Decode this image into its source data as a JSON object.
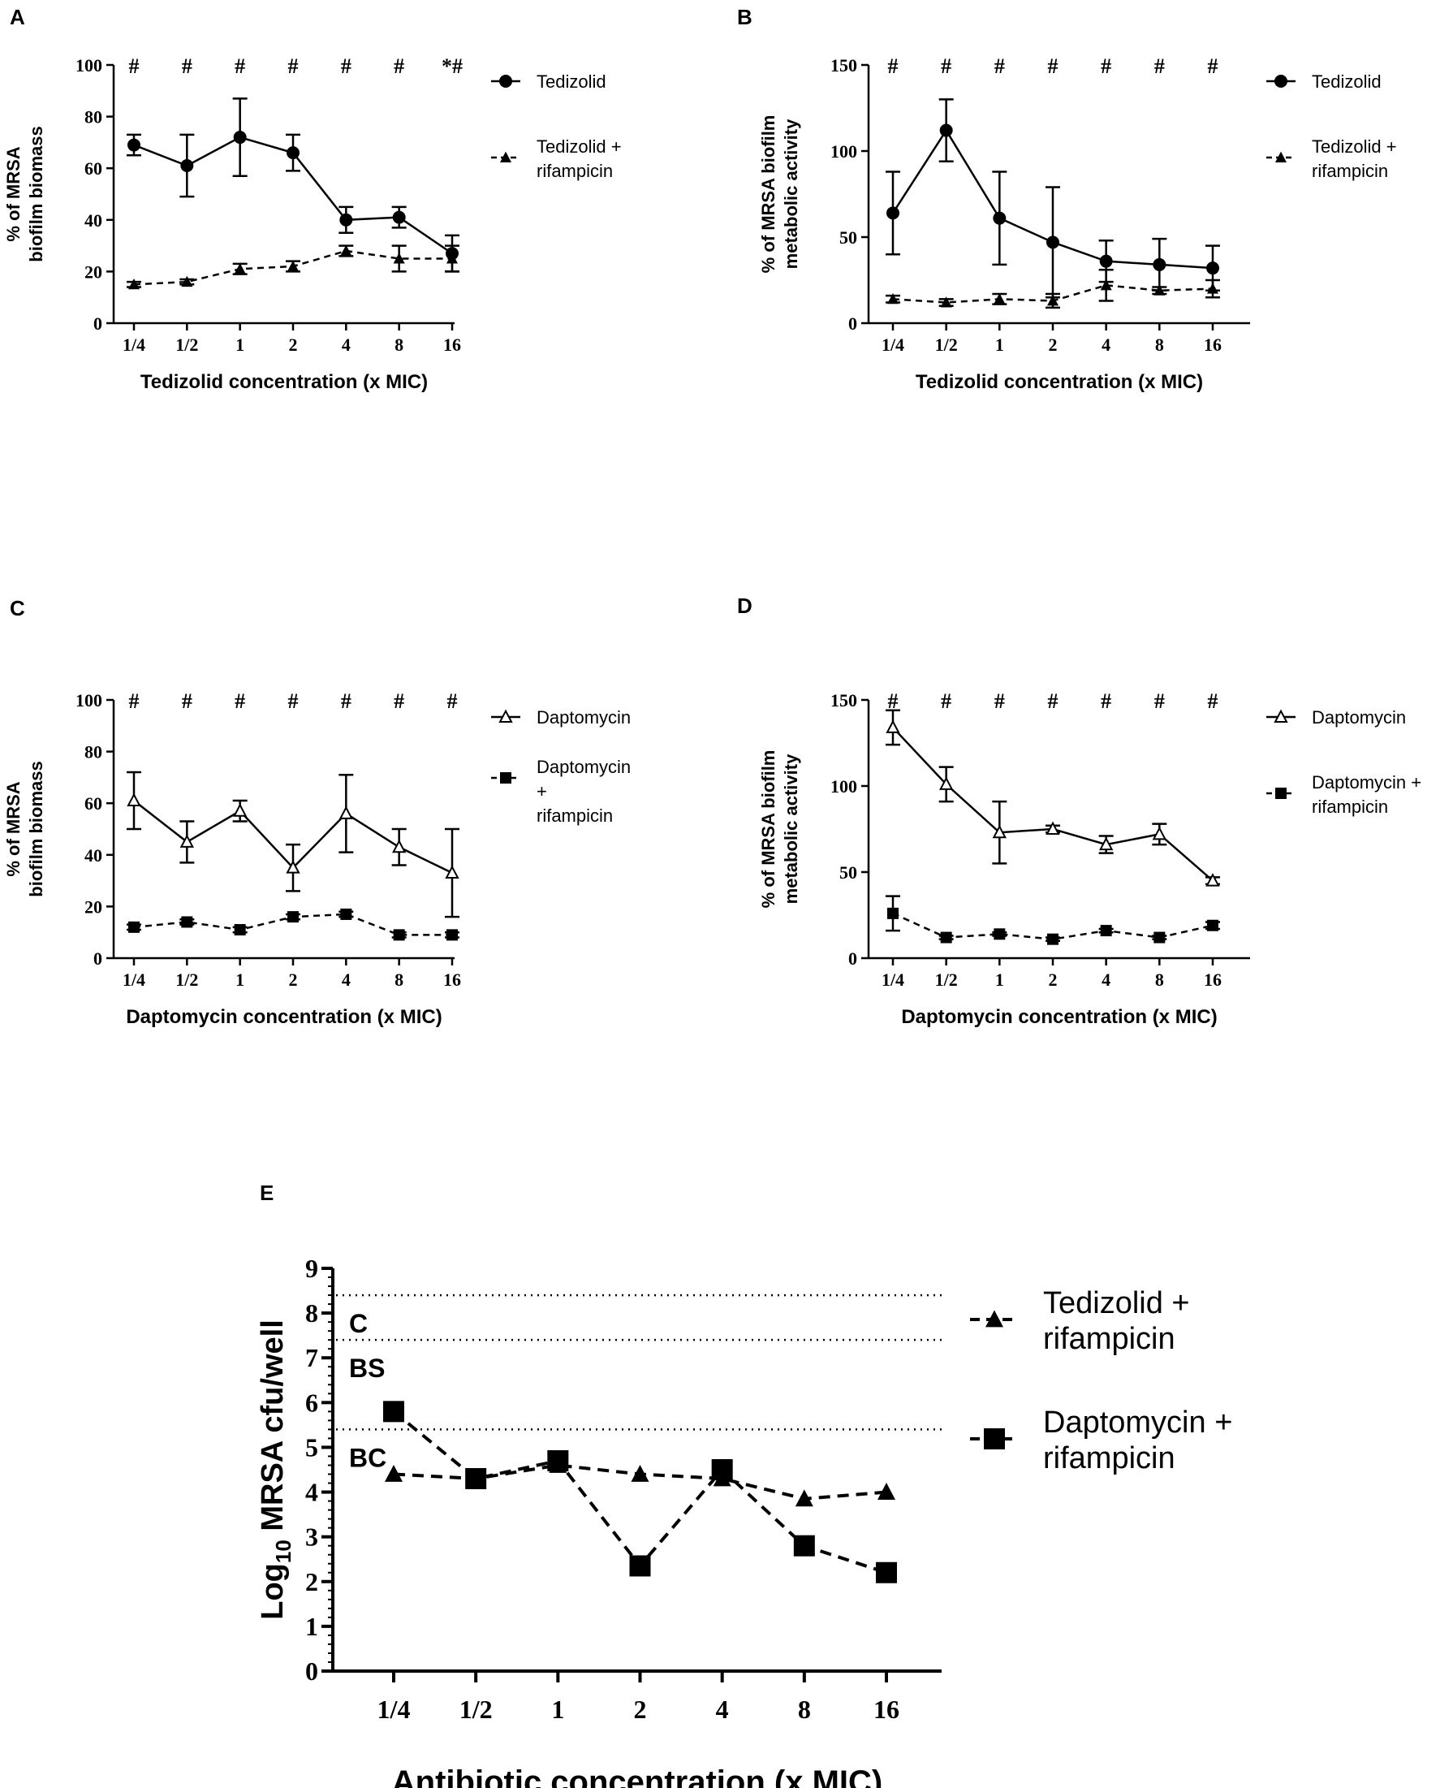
{
  "chart_data": [
    {
      "panel": "A",
      "type": "line",
      "categories": [
        "1/4",
        "1/2",
        "1",
        "2",
        "4",
        "8",
        "16"
      ],
      "xlabel": "Tedizolid concentration (x MIC)",
      "ylabel_lines": [
        "% of MRSA",
        "biofilm biomass"
      ],
      "ylim": [
        0,
        100
      ],
      "yticks": [
        0,
        20,
        40,
        60,
        80,
        100
      ],
      "markers_text": [
        "#",
        "#",
        "#",
        "#",
        "#",
        "#",
        "*#"
      ],
      "series": [
        {
          "name": "Tedizolid",
          "legend_lines": [
            "Tedizolid"
          ],
          "marker": "circle",
          "dash": false,
          "values": [
            69,
            61,
            72,
            66,
            40,
            41,
            27
          ],
          "err": [
            4,
            12,
            15,
            7,
            5,
            4,
            7
          ]
        },
        {
          "name": "Tedizolid + rifampicin",
          "legend_lines": [
            "Tedizolid +",
            "rifampicin"
          ],
          "marker": "triangle",
          "dash": true,
          "values": [
            15,
            16,
            21,
            22,
            28,
            25,
            25
          ],
          "err": [
            1,
            1,
            2,
            2,
            2,
            5,
            5
          ]
        }
      ]
    },
    {
      "panel": "B",
      "type": "line",
      "categories": [
        "1/4",
        "1/2",
        "1",
        "2",
        "4",
        "8",
        "16"
      ],
      "xlabel": "Tedizolid concentration (x MIC)",
      "ylabel_lines": [
        "% of MRSA biofilm",
        "metabolic activity"
      ],
      "ylim": [
        0,
        150
      ],
      "yticks": [
        0,
        50,
        100,
        150
      ],
      "markers_text": [
        "#",
        "#",
        "#",
        "#",
        "#",
        "#",
        "#"
      ],
      "series": [
        {
          "name": "Tedizolid",
          "legend_lines": [
            "Tedizolid"
          ],
          "marker": "circle",
          "dash": false,
          "values": [
            64,
            112,
            61,
            47,
            36,
            34,
            32
          ],
          "err": [
            24,
            18,
            27,
            32,
            12,
            15,
            13
          ]
        },
        {
          "name": "Tedizolid + rifampicin",
          "legend_lines": [
            "Tedizolid +",
            "rifampicin"
          ],
          "marker": "triangle",
          "dash": true,
          "values": [
            14,
            12,
            14,
            13,
            22,
            19,
            20
          ],
          "err": [
            2,
            2,
            3,
            4,
            9,
            2,
            5
          ]
        }
      ]
    },
    {
      "panel": "C",
      "type": "line",
      "categories": [
        "1/4",
        "1/2",
        "1",
        "2",
        "4",
        "8",
        "16"
      ],
      "xlabel": "Daptomycin concentration (x MIC)",
      "ylabel_lines": [
        "% of MRSA",
        "biofilm biomass"
      ],
      "ylim": [
        0,
        100
      ],
      "yticks": [
        0,
        20,
        40,
        60,
        80,
        100
      ],
      "markers_text": [
        "#",
        "#",
        "#",
        "#",
        "#",
        "#",
        "#"
      ],
      "series": [
        {
          "name": "Daptomycin",
          "legend_lines": [
            "Daptomycin"
          ],
          "marker": "open-triangle",
          "dash": false,
          "values": [
            61,
            45,
            57,
            35,
            56,
            43,
            33
          ],
          "err": [
            11,
            8,
            4,
            9,
            15,
            7,
            17
          ]
        },
        {
          "name": "Daptomycin + rifampicin",
          "legend_lines": [
            "Daptomycin",
            "+",
            "rifampicin"
          ],
          "marker": "square",
          "dash": true,
          "values": [
            12,
            14,
            11,
            16,
            17,
            9,
            9
          ],
          "err": [
            1,
            1,
            1,
            1,
            1,
            1,
            1
          ]
        }
      ]
    },
    {
      "panel": "D",
      "type": "line",
      "categories": [
        "1/4",
        "1/2",
        "1",
        "2",
        "4",
        "8",
        "16"
      ],
      "xlabel": "Daptomycin concentration (x MIC)",
      "ylabel_lines": [
        "% of MRSA biofilm",
        "metabolic activity"
      ],
      "ylim": [
        0,
        150
      ],
      "yticks": [
        0,
        50,
        100,
        150
      ],
      "markers_text": [
        "#",
        "#",
        "#",
        "#",
        "#",
        "#",
        "#"
      ],
      "series": [
        {
          "name": "Daptomycin",
          "legend_lines": [
            "Daptomycin"
          ],
          "marker": "open-triangle",
          "dash": false,
          "values": [
            134,
            101,
            73,
            75,
            66,
            72,
            45
          ],
          "err": [
            10,
            10,
            18,
            2,
            5,
            6,
            2
          ]
        },
        {
          "name": "Daptomycin + rifampicin",
          "legend_lines": [
            "Daptomycin +",
            "rifampicin"
          ],
          "marker": "square",
          "dash": true,
          "values": [
            26,
            12,
            14,
            11,
            16,
            12,
            19
          ],
          "err": [
            10,
            1,
            1,
            1,
            1,
            1,
            2
          ]
        }
      ]
    },
    {
      "panel": "E",
      "type": "line",
      "categories": [
        "1/4",
        "1/2",
        "1",
        "2",
        "4",
        "8",
        "16"
      ],
      "xlabel": "Antibiotic concentration (x MIC)",
      "ylabel_main": "Log",
      "ylabel_sub": "10",
      "ylabel_rest": " MRSA cfu/well",
      "ylim": [
        0,
        9
      ],
      "yticks": [
        0,
        1,
        2,
        3,
        4,
        5,
        6,
        7,
        8,
        9
      ],
      "reference_lines": [
        {
          "label": "C",
          "value": 8.4
        },
        {
          "label": "BS",
          "value": 7.4
        },
        {
          "label": "BC",
          "value": 5.4
        }
      ],
      "series": [
        {
          "name": "Tedizolid + rifampicin",
          "legend_lines": [
            "Tedizolid +",
            "rifampicin"
          ],
          "marker": "triangle",
          "dash": true,
          "values": [
            4.4,
            4.3,
            4.6,
            4.4,
            4.3,
            3.85,
            4.0
          ]
        },
        {
          "name": "Daptomycin + rifampicin",
          "legend_lines": [
            "Daptomycin +",
            "rifampicin"
          ],
          "marker": "square",
          "dash": true,
          "values": [
            5.8,
            4.3,
            4.7,
            2.35,
            4.5,
            2.8,
            2.2
          ]
        }
      ]
    }
  ]
}
